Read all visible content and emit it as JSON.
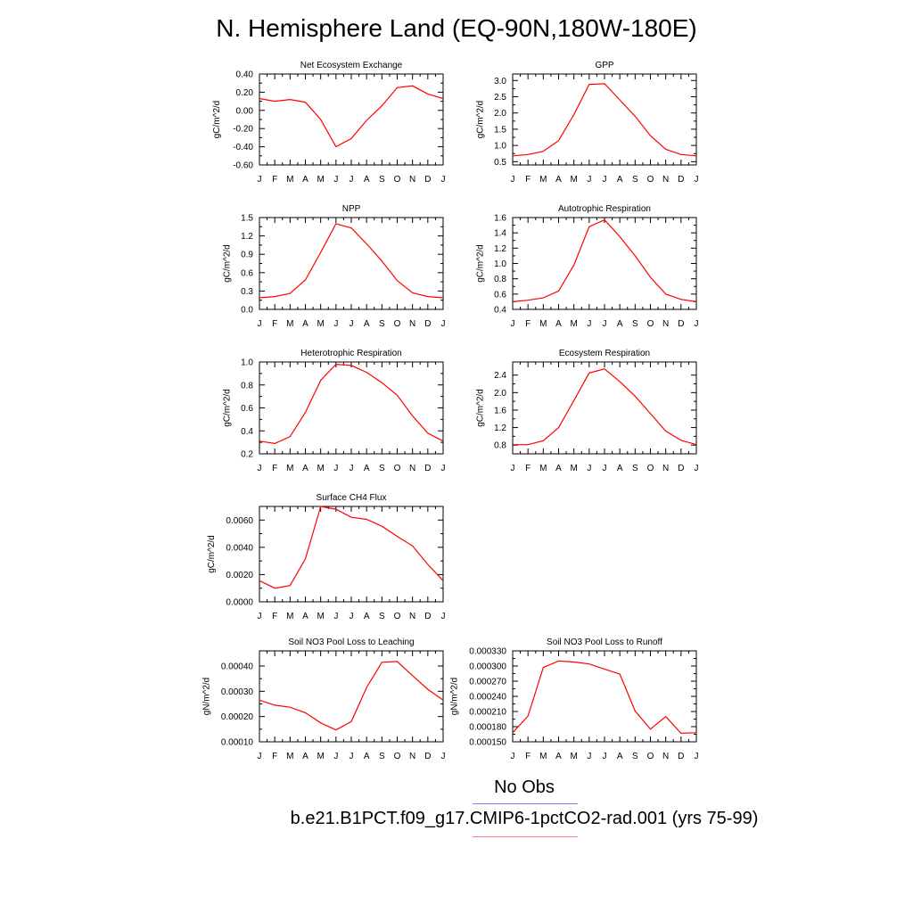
{
  "page": {
    "title": "N. Hemisphere Land (EQ-90N,180W-180E)",
    "legend": {
      "obs_label": "No Obs",
      "case_label": "b.e21.B1PCT.f09_g17.CMIP6-1pctCO2-rad.001 (yrs 75-99)",
      "obs_color": "#7f7fff",
      "case_color": "#ff7f7f"
    }
  },
  "chart_data": [
    {
      "type": "line",
      "title": "Net Ecosystem Exchange",
      "ylabel": "gC/m^2/d",
      "x": [
        "J",
        "F",
        "M",
        "A",
        "M",
        "J",
        "J",
        "A",
        "S",
        "O",
        "N",
        "D",
        "J"
      ],
      "ylim": [
        -0.6,
        0.4
      ],
      "yticks": [
        -0.6,
        -0.4,
        -0.2,
        0.0,
        0.2,
        0.4
      ],
      "ytick_labels": [
        "-0.60",
        "-0.40",
        "-0.20",
        "0.00",
        "0.20",
        "0.40"
      ],
      "series": [
        {
          "color": "#ff0000",
          "values": [
            0.13,
            0.1,
            0.12,
            0.09,
            -0.1,
            -0.4,
            -0.31,
            -0.11,
            0.05,
            0.25,
            0.27,
            0.18,
            0.13
          ]
        }
      ]
    },
    {
      "type": "line",
      "title": "GPP",
      "ylabel": "gC/m^2/d",
      "x": [
        "J",
        "F",
        "M",
        "A",
        "M",
        "J",
        "J",
        "A",
        "S",
        "O",
        "N",
        "D",
        "J"
      ],
      "ylim": [
        0.4,
        3.2
      ],
      "yticks": [
        0.5,
        1.0,
        1.5,
        2.0,
        2.5,
        3.0
      ],
      "ytick_labels": [
        "0.5",
        "1.0",
        "1.5",
        "2.0",
        "2.5",
        "3.0"
      ],
      "series": [
        {
          "color": "#ff0000",
          "values": [
            0.68,
            0.72,
            0.82,
            1.15,
            1.95,
            2.88,
            2.9,
            2.4,
            1.9,
            1.3,
            0.88,
            0.72,
            0.68
          ]
        }
      ]
    },
    {
      "type": "line",
      "title": "NPP",
      "ylabel": "gC/m^2/d",
      "x": [
        "J",
        "F",
        "M",
        "A",
        "M",
        "J",
        "J",
        "A",
        "S",
        "O",
        "N",
        "D",
        "J"
      ],
      "ylim": [
        0.0,
        1.5
      ],
      "yticks": [
        0.0,
        0.3,
        0.6,
        0.9,
        1.2,
        1.5
      ],
      "ytick_labels": [
        "0.0",
        "0.3",
        "0.6",
        "0.9",
        "1.2",
        "1.5"
      ],
      "series": [
        {
          "color": "#ff0000",
          "values": [
            0.19,
            0.21,
            0.26,
            0.48,
            0.93,
            1.4,
            1.33,
            1.07,
            0.79,
            0.47,
            0.27,
            0.21,
            0.19
          ]
        }
      ]
    },
    {
      "type": "line",
      "title": "Autotrophic Respiration",
      "ylabel": "gC/m^2/d",
      "x": [
        "J",
        "F",
        "M",
        "A",
        "M",
        "J",
        "J",
        "A",
        "S",
        "O",
        "N",
        "D",
        "J"
      ],
      "ylim": [
        0.4,
        1.6
      ],
      "yticks": [
        0.4,
        0.6,
        0.8,
        1.0,
        1.2,
        1.4,
        1.6
      ],
      "ytick_labels": [
        "0.4",
        "0.6",
        "0.8",
        "1.0",
        "1.2",
        "1.4",
        "1.6"
      ],
      "series": [
        {
          "color": "#ff0000",
          "values": [
            0.5,
            0.52,
            0.55,
            0.64,
            0.98,
            1.48,
            1.57,
            1.35,
            1.1,
            0.82,
            0.6,
            0.53,
            0.5
          ]
        }
      ]
    },
    {
      "type": "line",
      "title": "Heterotrophic Respiration",
      "ylabel": "gC/m^2/d",
      "x": [
        "J",
        "F",
        "M",
        "A",
        "M",
        "J",
        "J",
        "A",
        "S",
        "O",
        "N",
        "D",
        "J"
      ],
      "ylim": [
        0.2,
        1.0
      ],
      "yticks": [
        0.2,
        0.4,
        0.6,
        0.8,
        1.0
      ],
      "ytick_labels": [
        "0.2",
        "0.4",
        "0.6",
        "0.8",
        "1.0"
      ],
      "series": [
        {
          "color": "#ff0000",
          "values": [
            0.31,
            0.29,
            0.35,
            0.56,
            0.84,
            0.98,
            0.97,
            0.91,
            0.82,
            0.71,
            0.53,
            0.38,
            0.31
          ]
        }
      ]
    },
    {
      "type": "line",
      "title": "Ecosystem Respiration",
      "ylabel": "gC/m^2/d",
      "x": [
        "J",
        "F",
        "M",
        "A",
        "M",
        "J",
        "J",
        "A",
        "S",
        "O",
        "N",
        "D",
        "J"
      ],
      "ylim": [
        0.6,
        2.7
      ],
      "yticks": [
        0.8,
        1.2,
        1.6,
        2.0,
        2.4
      ],
      "ytick_labels": [
        "0.8",
        "1.2",
        "1.6",
        "2.0",
        "2.4"
      ],
      "series": [
        {
          "color": "#ff0000",
          "values": [
            0.81,
            0.81,
            0.9,
            1.2,
            1.82,
            2.45,
            2.54,
            2.25,
            1.92,
            1.52,
            1.12,
            0.91,
            0.81
          ]
        }
      ]
    },
    {
      "type": "line",
      "title": "Surface CH4 Flux",
      "ylabel": "gC/m^2/d",
      "x": [
        "J",
        "F",
        "M",
        "A",
        "M",
        "J",
        "J",
        "A",
        "S",
        "O",
        "N",
        "D",
        "J"
      ],
      "ylim": [
        0.0,
        0.007
      ],
      "yticks": [
        0.0,
        0.002,
        0.004,
        0.006
      ],
      "ytick_labels": [
        "0.0000",
        "0.0020",
        "0.0040",
        "0.0060"
      ],
      "series": [
        {
          "color": "#ff0000",
          "values": [
            0.00155,
            0.001,
            0.0012,
            0.00315,
            0.007,
            0.0068,
            0.0062,
            0.00605,
            0.00555,
            0.0048,
            0.0041,
            0.00275,
            0.00155
          ]
        }
      ]
    },
    {
      "type": "line",
      "title": "Soil NO3 Pool Loss to Leaching",
      "ylabel": "gN/m^2/d",
      "x": [
        "J",
        "F",
        "M",
        "A",
        "M",
        "J",
        "J",
        "A",
        "S",
        "O",
        "N",
        "D",
        "J"
      ],
      "ylim": [
        0.0001,
        0.00046
      ],
      "yticks": [
        0.0001,
        0.0002,
        0.0003,
        0.0004
      ],
      "ytick_labels": [
        "0.00010",
        "0.00020",
        "0.00030",
        "0.00040"
      ],
      "series": [
        {
          "color": "#ff0000",
          "values": [
            0.000265,
            0.000245,
            0.000237,
            0.000215,
            0.000175,
            0.000147,
            0.00018,
            0.000315,
            0.000415,
            0.000418,
            0.000362,
            0.000308,
            0.000265
          ]
        }
      ]
    },
    {
      "type": "line",
      "title": "Soil NO3 Pool Loss to Runoff",
      "ylabel": "gN/m^2/d",
      "x": [
        "J",
        "F",
        "M",
        "A",
        "M",
        "J",
        "J",
        "A",
        "S",
        "O",
        "N",
        "D",
        "J"
      ],
      "ylim": [
        0.00015,
        0.00033
      ],
      "yticks": [
        0.00015,
        0.00018,
        0.00021,
        0.00024,
        0.00027,
        0.0003,
        0.00033
      ],
      "ytick_labels": [
        "0.000150",
        "0.000180",
        "0.000210",
        "0.000240",
        "0.000270",
        "0.000300",
        "0.000330"
      ],
      "series": [
        {
          "color": "#ff0000",
          "values": [
            0.000168,
            0.000201,
            0.000297,
            0.00031,
            0.000308,
            0.000304,
            0.000294,
            0.000284,
            0.000211,
            0.000175,
            0.0002,
            0.000167,
            0.000168
          ]
        }
      ]
    }
  ]
}
